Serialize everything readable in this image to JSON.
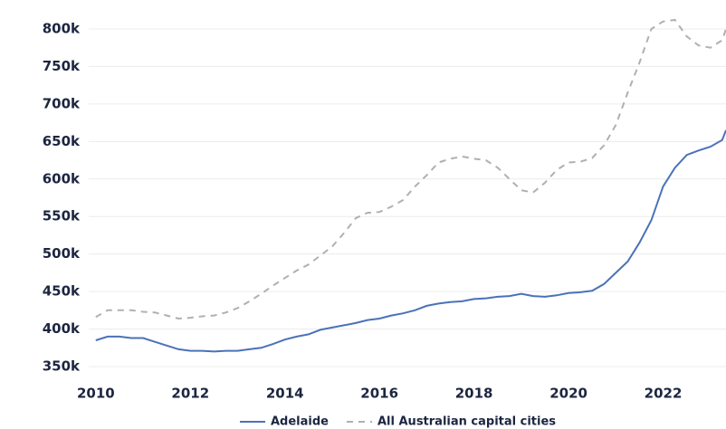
{
  "chart_data": {
    "type": "line",
    "x": [
      2010,
      2010.25,
      2010.5,
      2010.75,
      2011,
      2011.25,
      2011.5,
      2011.75,
      2012,
      2012.25,
      2012.5,
      2012.75,
      2013,
      2013.25,
      2013.5,
      2013.75,
      2014,
      2014.25,
      2014.5,
      2014.75,
      2015,
      2015.25,
      2015.5,
      2015.75,
      2016,
      2016.25,
      2016.5,
      2016.75,
      2017,
      2017.25,
      2017.5,
      2017.75,
      2018,
      2018.25,
      2018.5,
      2018.75,
      2019,
      2019.25,
      2019.5,
      2019.75,
      2020,
      2020.25,
      2020.5,
      2020.75,
      2021,
      2021.25,
      2021.5,
      2021.75,
      2022,
      2022.25,
      2022.5,
      2022.75,
      2023,
      2023.25,
      2023.33
    ],
    "series": [
      {
        "name": "Adelaide",
        "color": "#4a72b8",
        "dash": false,
        "values": [
          385,
          390,
          390,
          388,
          388,
          383,
          378,
          373,
          371,
          371,
          370,
          371,
          371,
          373,
          375,
          380,
          386,
          390,
          393,
          399,
          402,
          405,
          408,
          412,
          414,
          418,
          421,
          425,
          431,
          434,
          436,
          437,
          440,
          441,
          443,
          444,
          447,
          444,
          443,
          445,
          448,
          449,
          451,
          460,
          475,
          490,
          515,
          545,
          590,
          615,
          632,
          638,
          643,
          652,
          665
        ]
      },
      {
        "name": "All Australian capital cities",
        "color": "#b0b0b0",
        "dash": true,
        "values": [
          416,
          425,
          425,
          425,
          423,
          422,
          418,
          414,
          415,
          417,
          418,
          422,
          428,
          437,
          447,
          458,
          468,
          478,
          486,
          498,
          510,
          528,
          548,
          555,
          556,
          563,
          572,
          590,
          605,
          622,
          627,
          630,
          627,
          625,
          615,
          600,
          585,
          582,
          595,
          612,
          622,
          623,
          628,
          645,
          672,
          715,
          755,
          800,
          810,
          812,
          790,
          778,
          775,
          785,
          800
        ]
      }
    ],
    "xlim": [
      2009.85,
      2023.33
    ],
    "xticks": [
      2010,
      2012,
      2014,
      2016,
      2018,
      2020,
      2022
    ],
    "ylim": [
      340,
      820
    ],
    "yticks": [
      {
        "value": 350,
        "label": "350k"
      },
      {
        "value": 400,
        "label": "400k"
      },
      {
        "value": 450,
        "label": "450k"
      },
      {
        "value": 500,
        "label": "500k"
      },
      {
        "value": 550,
        "label": "550k"
      },
      {
        "value": 600,
        "label": "600k"
      },
      {
        "value": 650,
        "label": "650k"
      },
      {
        "value": 700,
        "label": "700k"
      },
      {
        "value": 750,
        "label": "750k"
      },
      {
        "value": 800,
        "label": "800k"
      }
    ],
    "grid": true,
    "legend": "bottom"
  }
}
